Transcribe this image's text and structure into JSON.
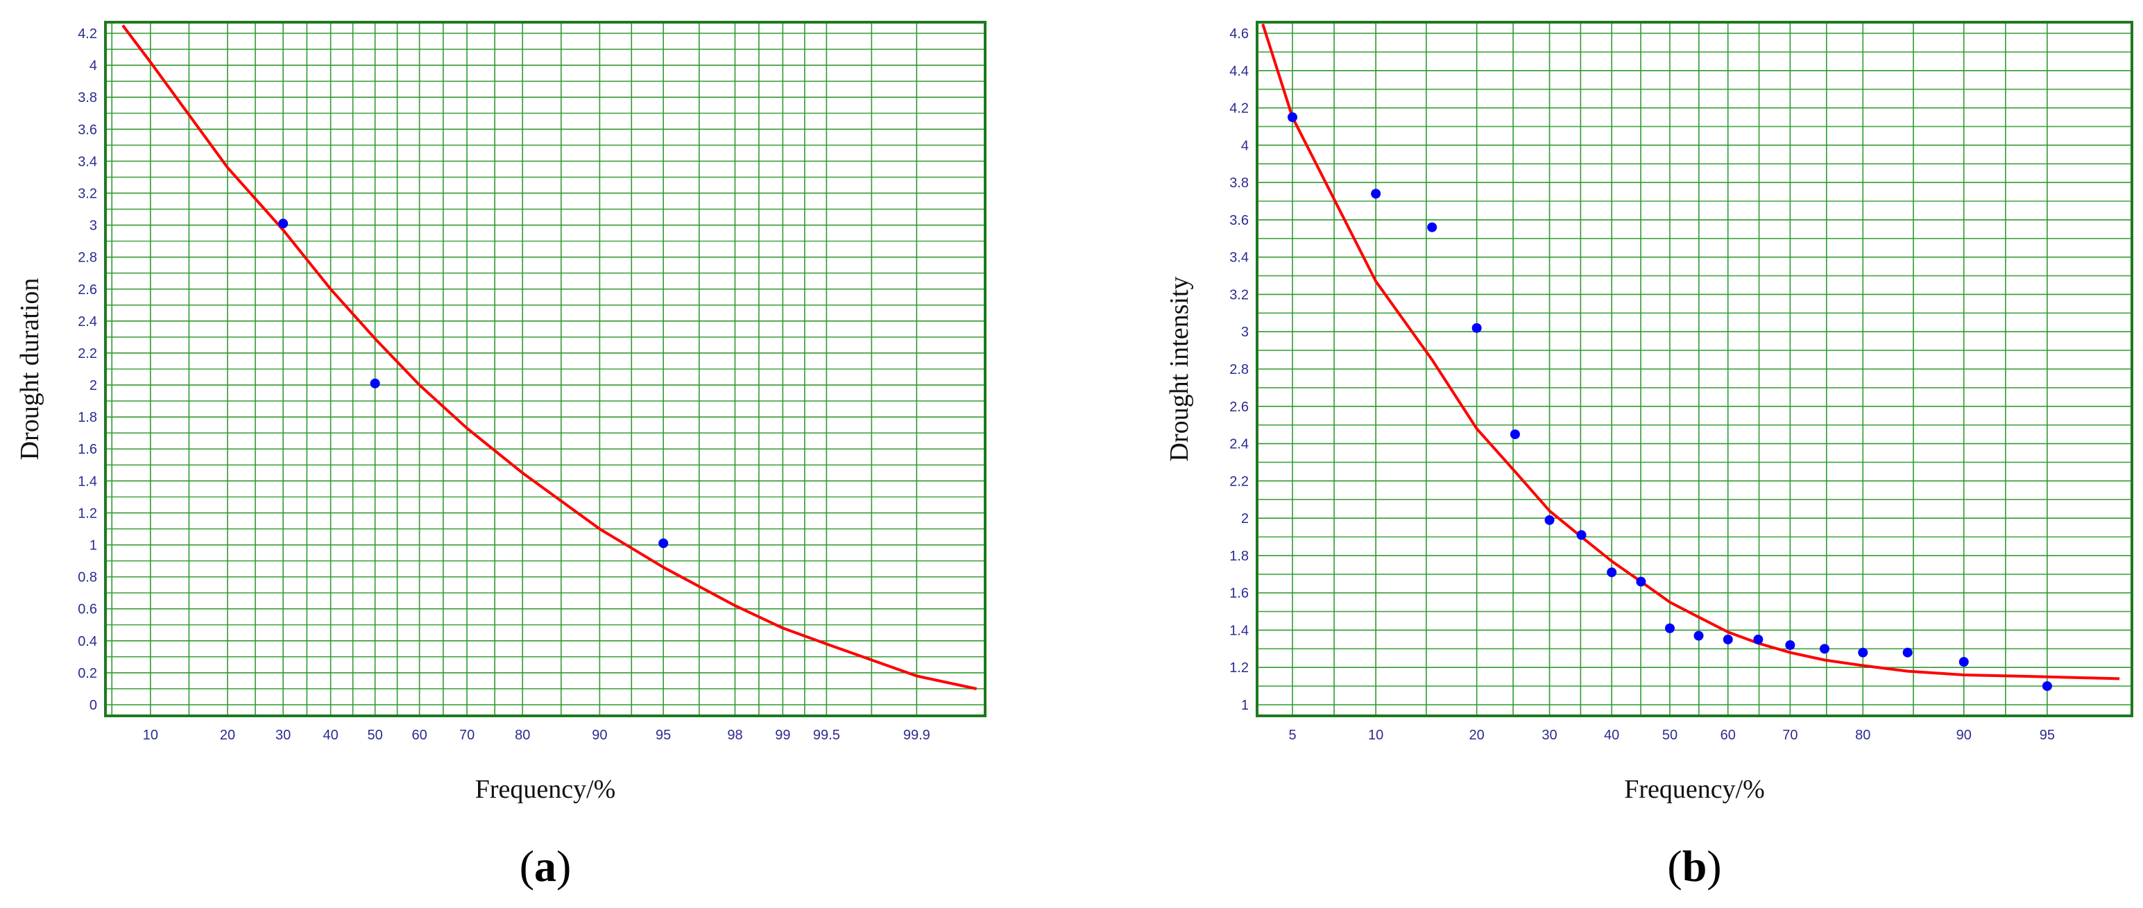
{
  "chart_data": [
    {
      "id": "a",
      "type": "scatter",
      "panel_label_letter": "a",
      "xlabel": "Frequency/%",
      "ylabel": "Drought duration",
      "x_scale": "probability",
      "x_ticks": [
        "10",
        "20",
        "30",
        "40",
        "50",
        "60",
        "70",
        "80",
        "90",
        "95",
        "98",
        "99",
        "99.5",
        "99.9"
      ],
      "y_ticks": [
        "0",
        "0.2",
        "0.4",
        "0.6",
        "0.8",
        "1",
        "1.2",
        "1.4",
        "1.6",
        "1.8",
        "2",
        "2.2",
        "2.4",
        "2.6",
        "2.8",
        "3",
        "3.2",
        "3.4",
        "3.6",
        "3.8",
        "4",
        "4.2"
      ],
      "ylim": [
        0,
        4.2
      ],
      "grid": true,
      "points": [
        {
          "x": 30,
          "y": 3.01
        },
        {
          "x": 50,
          "y": 2.01
        },
        {
          "x": 95,
          "y": 1.01
        }
      ],
      "fit_curve": [
        {
          "x": 7.5,
          "y": 4.25
        },
        {
          "x": 10,
          "y": 4.02
        },
        {
          "x": 20,
          "y": 3.36
        },
        {
          "x": 30,
          "y": 2.97
        },
        {
          "x": 40,
          "y": 2.6
        },
        {
          "x": 50,
          "y": 2.29
        },
        {
          "x": 60,
          "y": 2.0
        },
        {
          "x": 70,
          "y": 1.73
        },
        {
          "x": 80,
          "y": 1.45
        },
        {
          "x": 90,
          "y": 1.1
        },
        {
          "x": 95,
          "y": 0.86
        },
        {
          "x": 98,
          "y": 0.62
        },
        {
          "x": 99,
          "y": 0.48
        },
        {
          "x": 99.5,
          "y": 0.38
        },
        {
          "x": 99.9,
          "y": 0.18
        },
        {
          "x": 99.97,
          "y": 0.1
        }
      ],
      "colors": {
        "fit": "#ff0000",
        "points": "#0000ff",
        "grid": "#2f9a2f"
      }
    },
    {
      "id": "b",
      "type": "scatter",
      "panel_label_letter": "b",
      "xlabel": "Frequency/%",
      "ylabel": "Drought intensity",
      "x_scale": "probability",
      "x_ticks": [
        "5",
        "10",
        "20",
        "30",
        "40",
        "50",
        "60",
        "70",
        "80",
        "90",
        "95"
      ],
      "y_ticks": [
        "1",
        "1.2",
        "1.4",
        "1.6",
        "1.8",
        "2",
        "2.2",
        "2.4",
        "2.6",
        "2.8",
        "3",
        "3.2",
        "3.4",
        "3.6",
        "3.8",
        "4",
        "4.2",
        "4.4",
        "4.6"
      ],
      "ylim": [
        1,
        4.6
      ],
      "grid": true,
      "points": [
        {
          "x": 5,
          "y": 4.15
        },
        {
          "x": 10,
          "y": 3.74
        },
        {
          "x": 15,
          "y": 3.56
        },
        {
          "x": 20,
          "y": 3.02
        },
        {
          "x": 25,
          "y": 2.45
        },
        {
          "x": 30,
          "y": 1.99
        },
        {
          "x": 35,
          "y": 1.91
        },
        {
          "x": 40,
          "y": 1.71
        },
        {
          "x": 45,
          "y": 1.66
        },
        {
          "x": 50,
          "y": 1.41
        },
        {
          "x": 55,
          "y": 1.37
        },
        {
          "x": 60,
          "y": 1.35
        },
        {
          "x": 65,
          "y": 1.35
        },
        {
          "x": 70,
          "y": 1.32
        },
        {
          "x": 75,
          "y": 1.3
        },
        {
          "x": 80,
          "y": 1.28
        },
        {
          "x": 85,
          "y": 1.28
        },
        {
          "x": 90,
          "y": 1.23
        },
        {
          "x": 95,
          "y": 1.1
        }
      ],
      "fit_curve": [
        {
          "x": 3.8,
          "y": 4.65
        },
        {
          "x": 5,
          "y": 4.15
        },
        {
          "x": 10,
          "y": 3.27
        },
        {
          "x": 15,
          "y": 2.85
        },
        {
          "x": 20,
          "y": 2.48
        },
        {
          "x": 25,
          "y": 2.25
        },
        {
          "x": 30,
          "y": 2.04
        },
        {
          "x": 35,
          "y": 1.9
        },
        {
          "x": 40,
          "y": 1.77
        },
        {
          "x": 45,
          "y": 1.66
        },
        {
          "x": 50,
          "y": 1.55
        },
        {
          "x": 55,
          "y": 1.47
        },
        {
          "x": 60,
          "y": 1.39
        },
        {
          "x": 65,
          "y": 1.33
        },
        {
          "x": 70,
          "y": 1.28
        },
        {
          "x": 75,
          "y": 1.24
        },
        {
          "x": 80,
          "y": 1.21
        },
        {
          "x": 85,
          "y": 1.18
        },
        {
          "x": 90,
          "y": 1.16
        },
        {
          "x": 95,
          "y": 1.15
        },
        {
          "x": 97.5,
          "y": 1.14
        }
      ],
      "colors": {
        "fit": "#ff0000",
        "points": "#0000ff",
        "grid": "#2f9a2f"
      }
    }
  ]
}
